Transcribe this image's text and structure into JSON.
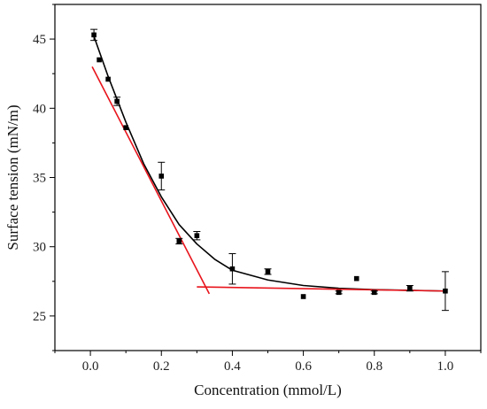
{
  "chart_data": {
    "type": "scatter",
    "title": "",
    "xlabel": "Concentration (mmol/L)",
    "ylabel": "Surface tension (mN/m)",
    "xlim": [
      -0.1,
      1.1
    ],
    "ylim": [
      22.5,
      47.5
    ],
    "x_ticks": [
      0.0,
      0.2,
      0.4,
      0.6,
      0.8,
      1.0
    ],
    "x_tick_labels": [
      "0.0",
      "0.2",
      "0.4",
      "0.6",
      "0.8",
      "1.0"
    ],
    "y_ticks": [
      25,
      30,
      35,
      40,
      45
    ],
    "y_tick_labels": [
      "25",
      "30",
      "35",
      "40",
      "45"
    ],
    "grid": false,
    "legend": "none",
    "series": [
      {
        "kind": "points-with-error-bars",
        "color": "#000000",
        "points": [
          {
            "x": 0.01,
            "y": 45.3,
            "err": 0.4
          },
          {
            "x": 0.025,
            "y": 43.5,
            "err": 0.0
          },
          {
            "x": 0.05,
            "y": 42.1,
            "err": 0.0
          },
          {
            "x": 0.075,
            "y": 40.5,
            "err": 0.3
          },
          {
            "x": 0.1,
            "y": 38.6,
            "err": 0.0
          },
          {
            "x": 0.2,
            "y": 35.1,
            "err": 1.0
          },
          {
            "x": 0.25,
            "y": 30.4,
            "err": 0.2
          },
          {
            "x": 0.3,
            "y": 30.8,
            "err": 0.3
          },
          {
            "x": 0.4,
            "y": 28.4,
            "err": 1.1
          },
          {
            "x": 0.5,
            "y": 28.2,
            "err": 0.2
          },
          {
            "x": 0.6,
            "y": 26.4,
            "err": 0.0
          },
          {
            "x": 0.7,
            "y": 26.7,
            "err": 0.1
          },
          {
            "x": 0.75,
            "y": 27.7,
            "err": 0.0
          },
          {
            "x": 0.8,
            "y": 26.7,
            "err": 0.1
          },
          {
            "x": 0.9,
            "y": 27.0,
            "err": 0.2
          },
          {
            "x": 1.0,
            "y": 26.8,
            "err": 1.4
          }
        ]
      },
      {
        "kind": "fit-curve",
        "color": "#000000",
        "points": [
          {
            "x": 0.01,
            "y": 45.2
          },
          {
            "x": 0.05,
            "y": 42.3
          },
          {
            "x": 0.1,
            "y": 39.0
          },
          {
            "x": 0.15,
            "y": 36.0
          },
          {
            "x": 0.2,
            "y": 33.6
          },
          {
            "x": 0.25,
            "y": 31.6
          },
          {
            "x": 0.3,
            "y": 30.2
          },
          {
            "x": 0.35,
            "y": 29.1
          },
          {
            "x": 0.4,
            "y": 28.3
          },
          {
            "x": 0.5,
            "y": 27.6
          },
          {
            "x": 0.6,
            "y": 27.2
          },
          {
            "x": 0.7,
            "y": 27.0
          },
          {
            "x": 0.8,
            "y": 26.9
          },
          {
            "x": 0.9,
            "y": 26.85
          },
          {
            "x": 1.0,
            "y": 26.8
          }
        ]
      },
      {
        "kind": "red-line-steep",
        "color": "#e8141c",
        "points": [
          {
            "x": 0.005,
            "y": 43.0
          },
          {
            "x": 0.335,
            "y": 26.6
          }
        ]
      },
      {
        "kind": "red-line-flat",
        "color": "#e8141c",
        "points": [
          {
            "x": 0.3,
            "y": 27.1
          },
          {
            "x": 1.0,
            "y": 26.8
          }
        ]
      }
    ]
  }
}
